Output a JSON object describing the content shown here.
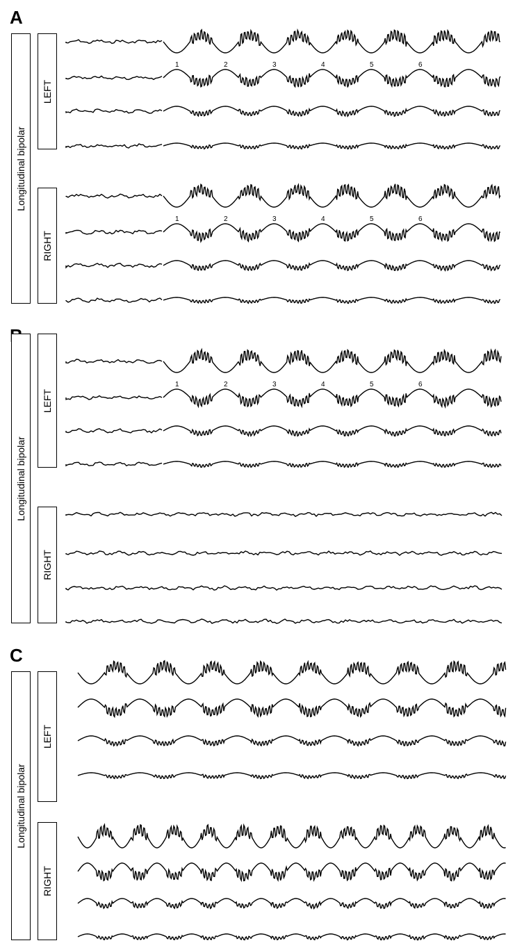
{
  "panels": [
    {
      "letter": "A",
      "montage_label": "Longitudinal bipolar",
      "groups": [
        {
          "side_label": "LEFT",
          "peak_numbers": [
            "1",
            "2",
            "3",
            "4",
            "5",
            "6"
          ],
          "traces": [
            {
              "pre": "baseline",
              "post": "spike-wave"
            },
            {
              "pre": "baseline",
              "post": "inverted-spike-wave"
            },
            {
              "pre": "baseline",
              "post": "slow-wave"
            },
            {
              "pre": "baseline",
              "post": "attenuated-wave"
            }
          ]
        },
        {
          "side_label": "RIGHT",
          "peak_numbers": [
            "1",
            "2",
            "3",
            "4",
            "5",
            "6"
          ],
          "traces": [
            {
              "pre": "baseline",
              "post": "spike-wave"
            },
            {
              "pre": "baseline",
              "post": "inverted-spike-wave"
            },
            {
              "pre": "baseline",
              "post": "slow-wave"
            },
            {
              "pre": "baseline",
              "post": "attenuated-wave"
            }
          ]
        }
      ]
    },
    {
      "letter": "B",
      "montage_label": "Longitudinal bipolar",
      "groups": [
        {
          "side_label": "LEFT",
          "peak_numbers": [
            "1",
            "2",
            "3",
            "4",
            "5",
            "6"
          ],
          "traces": [
            {
              "pre": "baseline",
              "post": "spike-wave"
            },
            {
              "pre": "baseline",
              "post": "inverted-spike-wave"
            },
            {
              "pre": "baseline",
              "post": "slow-wave"
            },
            {
              "pre": "baseline",
              "post": "attenuated-wave"
            }
          ]
        },
        {
          "side_label": "RIGHT",
          "peak_numbers": [],
          "traces": [
            {
              "pre": "baseline",
              "post": "baseline"
            },
            {
              "pre": "baseline",
              "post": "baseline"
            },
            {
              "pre": "baseline",
              "post": "baseline"
            },
            {
              "pre": "baseline",
              "post": "baseline"
            }
          ]
        }
      ]
    },
    {
      "letter": "C",
      "montage_label": "Longitudinal bipolar",
      "groups": [
        {
          "side_label": "LEFT",
          "peak_numbers": [],
          "traces": [
            {
              "pre": "none",
              "post": "spike-wave"
            },
            {
              "pre": "none",
              "post": "inverted-spike-wave"
            },
            {
              "pre": "none",
              "post": "slow-wave"
            },
            {
              "pre": "none",
              "post": "attenuated-wave"
            }
          ]
        },
        {
          "side_label": "RIGHT",
          "peak_numbers": [],
          "traces": [
            {
              "pre": "none",
              "post": "fast-spike-wave"
            },
            {
              "pre": "none",
              "post": "fast-inverted-spike-wave"
            },
            {
              "pre": "none",
              "post": "fast-slow-wave"
            },
            {
              "pre": "none",
              "post": "fast-attenuated-wave"
            }
          ]
        }
      ]
    }
  ]
}
